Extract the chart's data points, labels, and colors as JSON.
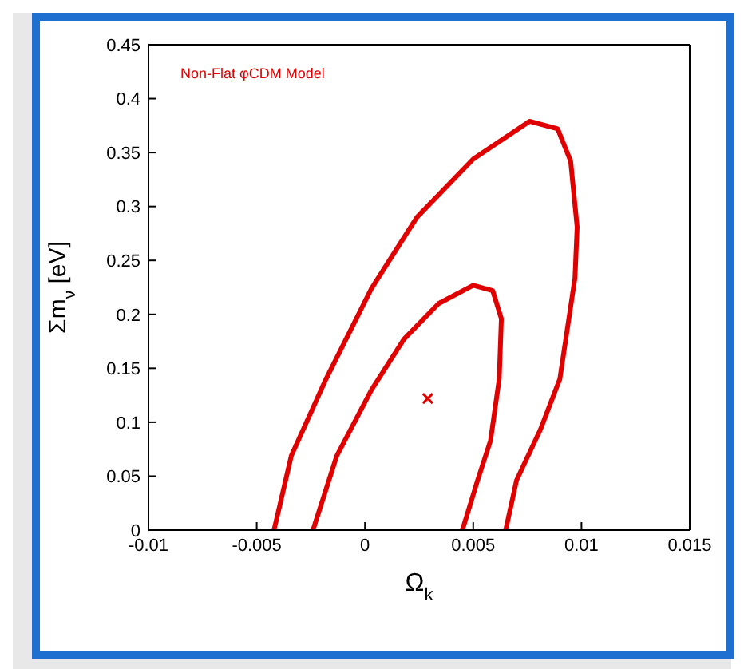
{
  "chart_data": {
    "type": "line",
    "xlabel": "Ω$_{k}$",
    "ylabel": "Σm$_{ν}$ [eV]",
    "annotations": [
      "Non-Flat φCDM Model"
    ],
    "xlim": [
      -0.01,
      0.015
    ],
    "xticks": [
      -0.01,
      -0.005,
      0,
      0.005,
      0.01,
      0.015
    ],
    "ylim": [
      0,
      0.45
    ],
    "yticks": [
      0,
      0.05,
      0.1,
      0.15,
      0.2,
      0.25,
      0.3,
      0.35,
      0.4,
      0.45
    ],
    "series": [
      {
        "color": "#e00000",
        "marker": "none",
        "line_style": "solid",
        "x": [
          -0.0042,
          -0.0034,
          -0.0018,
          0.0003,
          0.0024,
          0.005,
          0.0076,
          0.0089,
          0.0095,
          0.0098,
          0.0097,
          0.009,
          0.0081,
          0.007,
          0.0065
        ],
        "values": [
          0,
          0.069,
          0.14,
          0.224,
          0.29,
          0.344,
          0.379,
          0.372,
          0.342,
          0.281,
          0.234,
          0.14,
          0.093,
          0.046,
          0
        ]
      },
      {
        "color": "#e00000",
        "marker": "none",
        "line_style": "solid",
        "x": [
          -0.0024,
          -0.0013,
          0.0003,
          0.0018,
          0.0034,
          0.005,
          0.0059,
          0.0063,
          0.0062,
          0.0058,
          0.0052,
          0.0045
        ],
        "values": [
          0,
          0.069,
          0.13,
          0.177,
          0.21,
          0.227,
          0.222,
          0.196,
          0.14,
          0.083,
          0.046,
          0
        ]
      },
      {
        "type": "scatter",
        "color": "#e00000",
        "marker": "cross",
        "x": [
          0.0029
        ],
        "values": [
          0.122
        ]
      }
    ]
  }
}
